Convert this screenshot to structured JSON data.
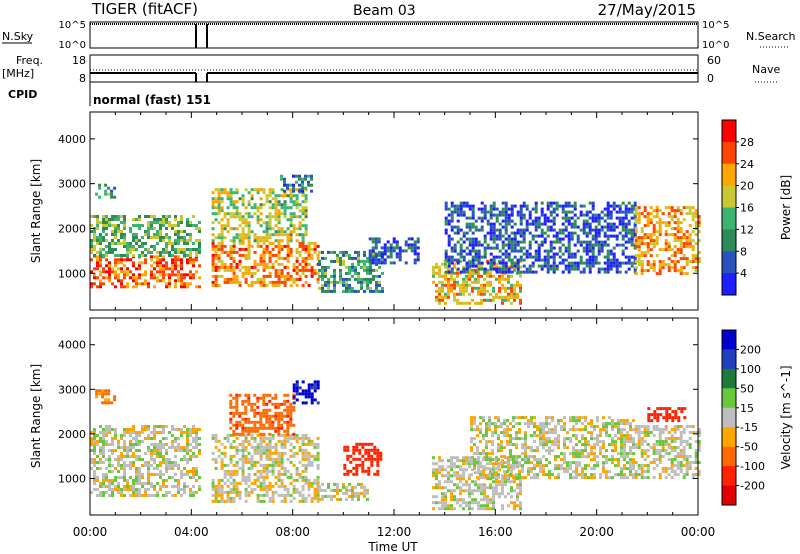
{
  "header": {
    "title": "TIGER (fitACF)",
    "beam": "Beam 03",
    "date": "27/May/2015"
  },
  "nsky_panel": {
    "left_label": "N.Sky",
    "right_label": "N.Search",
    "left_ticks": [
      "10^5",
      "10^0"
    ],
    "right_ticks": [
      "10^5",
      "10^0"
    ]
  },
  "freq_panel": {
    "left_label_1": "Freq.",
    "left_label_2": "[MHz]",
    "right_label": "Nave",
    "left_ticks": [
      "18",
      "8"
    ],
    "right_ticks": [
      "60",
      "0"
    ]
  },
  "cpid": {
    "label": "CPID",
    "value": "normal (fast) 151"
  },
  "x_axis": {
    "label": "Time UT",
    "ticks": [
      "00:00",
      "04:00",
      "08:00",
      "12:00",
      "16:00",
      "20:00",
      "00:00"
    ]
  },
  "colors": {
    "frame": "#000000",
    "ground_scatter": "#bebebe"
  },
  "chart_data": [
    {
      "type": "heatmap",
      "panel": "power",
      "ylabel": "Slant Range [km]",
      "y_ticks": [
        "1000",
        "2000",
        "3000",
        "4000"
      ],
      "ylim": [
        180,
        4600
      ],
      "xlim_hours": [
        0,
        24
      ],
      "colorbar": {
        "label": "Power [dB]",
        "ticks": [
          "4",
          "8",
          "12",
          "16",
          "20",
          "24",
          "28"
        ],
        "range": [
          0,
          32
        ]
      },
      "regions": [
        {
          "t0": 0.0,
          "t1": 4.3,
          "r0": 700,
          "r1": 1400,
          "value": 25
        },
        {
          "t0": 0.0,
          "t1": 4.3,
          "r0": 1400,
          "r1": 2300,
          "value": 14
        },
        {
          "t0": 0.2,
          "t1": 1.0,
          "r0": 2700,
          "r1": 3000,
          "value": 12
        },
        {
          "t0": 4.8,
          "t1": 9.0,
          "r0": 700,
          "r1": 1700,
          "value": 23
        },
        {
          "t0": 4.8,
          "t1": 8.5,
          "r0": 1700,
          "r1": 2900,
          "value": 17
        },
        {
          "t0": 7.5,
          "t1": 8.8,
          "r0": 2800,
          "r1": 3200,
          "value": 9
        },
        {
          "t0": 9.0,
          "t1": 11.5,
          "r0": 600,
          "r1": 1500,
          "value": 11
        },
        {
          "t0": 11.0,
          "t1": 13.0,
          "r0": 1200,
          "r1": 1800,
          "value": 6
        },
        {
          "t0": 13.5,
          "t1": 17.0,
          "r0": 300,
          "r1": 1300,
          "value": 20
        },
        {
          "t0": 14.0,
          "t1": 21.5,
          "r0": 1000,
          "r1": 2600,
          "value": 6
        },
        {
          "t0": 21.5,
          "t1": 24.0,
          "r0": 1000,
          "r1": 2500,
          "value": 22
        }
      ]
    },
    {
      "type": "heatmap",
      "panel": "velocity",
      "ylabel": "Slant Range [km]",
      "y_ticks": [
        "1000",
        "2000",
        "3000",
        "4000"
      ],
      "ylim": [
        180,
        4600
      ],
      "xlim_hours": [
        0,
        24
      ],
      "colorbar": {
        "label": "Velocity [m s^-1]",
        "ticks": [
          "200",
          "100",
          "50",
          "15",
          "-15",
          "-50",
          "-100",
          "-200"
        ],
        "range": [
          -250,
          250
        ]
      },
      "regions": [
        {
          "t0": 0.0,
          "t1": 4.3,
          "r0": 600,
          "r1": 2200,
          "value": 0
        },
        {
          "t0": 0.2,
          "t1": 1.0,
          "r0": 2700,
          "r1": 3000,
          "value": -60
        },
        {
          "t0": 4.8,
          "t1": 9.0,
          "r0": 500,
          "r1": 2000,
          "value": -5
        },
        {
          "t0": 5.5,
          "t1": 8.0,
          "r0": 2000,
          "r1": 2900,
          "value": -80
        },
        {
          "t0": 8.0,
          "t1": 9.0,
          "r0": 2700,
          "r1": 3200,
          "value": 220
        },
        {
          "t0": 9.0,
          "t1": 11.0,
          "r0": 500,
          "r1": 900,
          "value": 0
        },
        {
          "t0": 10.0,
          "t1": 11.5,
          "r0": 1100,
          "r1": 1800,
          "value": -150
        },
        {
          "t0": 13.5,
          "t1": 17.0,
          "r0": 300,
          "r1": 1500,
          "value": 0
        },
        {
          "t0": 15.0,
          "t1": 21.5,
          "r0": 1000,
          "r1": 2400,
          "value": 0
        },
        {
          "t0": 21.5,
          "t1": 24.0,
          "r0": 1000,
          "r1": 2200,
          "value": 0
        },
        {
          "t0": 22.0,
          "t1": 23.5,
          "r0": 2300,
          "r1": 2600,
          "value": -130
        }
      ]
    }
  ]
}
